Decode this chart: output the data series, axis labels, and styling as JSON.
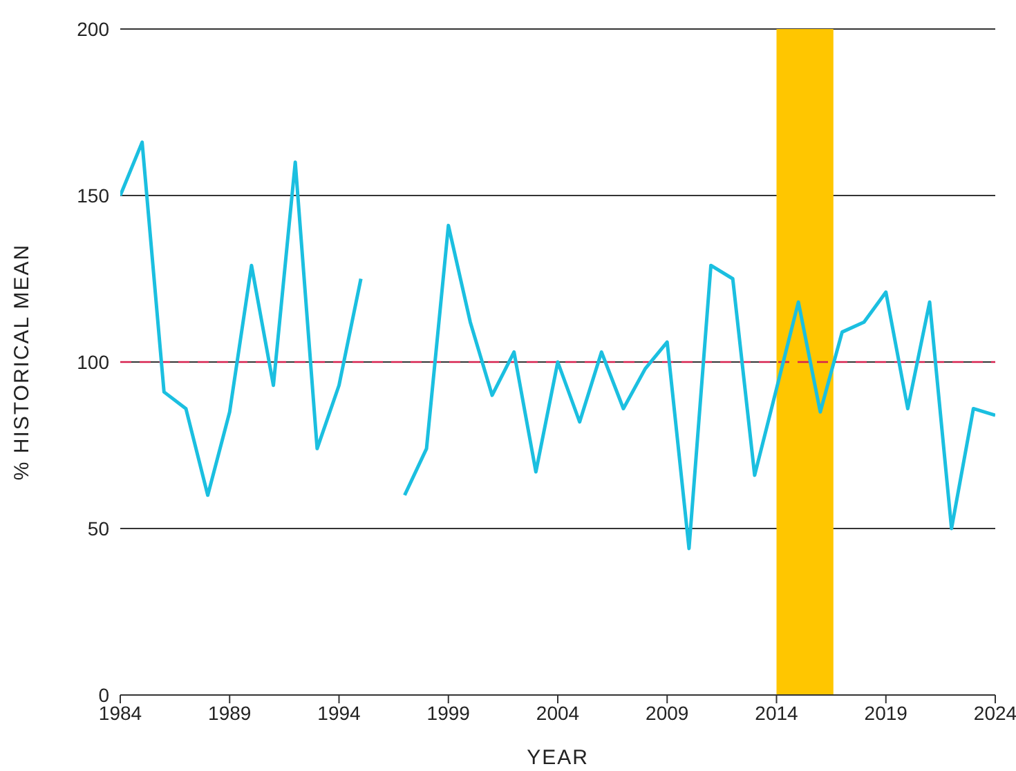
{
  "chart_data": {
    "type": "line",
    "xlabel": "YEAR",
    "ylabel": "% HISTORICAL MEAN",
    "x": [
      1984,
      1985,
      1986,
      1987,
      1988,
      1989,
      1990,
      1991,
      1992,
      1993,
      1994,
      1995,
      1996,
      1997,
      1998,
      1999,
      2000,
      2001,
      2002,
      2003,
      2004,
      2005,
      2006,
      2007,
      2008,
      2009,
      2010,
      2011,
      2012,
      2013,
      2014,
      2015,
      2016,
      2017,
      2018,
      2019,
      2020,
      2021,
      2022,
      2023,
      2024
    ],
    "series": [
      {
        "color": "#1bbfe0",
        "values": [
          150,
          166,
          91,
          86,
          60,
          85,
          129,
          93,
          160,
          74,
          93,
          125,
          null,
          60,
          74,
          141,
          112,
          90,
          103,
          67,
          100,
          82,
          103,
          86,
          98,
          106,
          44,
          129,
          125,
          66,
          92,
          118,
          85,
          109,
          112,
          121,
          86,
          118,
          50,
          86,
          84
        ]
      }
    ],
    "xlim": [
      1984,
      2024
    ],
    "xticks": [
      1984,
      1989,
      1994,
      1999,
      2004,
      2009,
      2014,
      2019,
      2024
    ],
    "ylim": [
      0,
      200
    ],
    "yticks": [
      0,
      50,
      100,
      150,
      200
    ],
    "grid": "y",
    "marker": "none",
    "line_style": "solid",
    "ref_lines": [
      {
        "axis": "y",
        "value": 100,
        "color": "#d6204e",
        "line_style": "dashed"
      }
    ],
    "bands": [
      {
        "axis": "x",
        "from": 2014,
        "to": 2016.6,
        "color": "#ffc600"
      }
    ]
  }
}
